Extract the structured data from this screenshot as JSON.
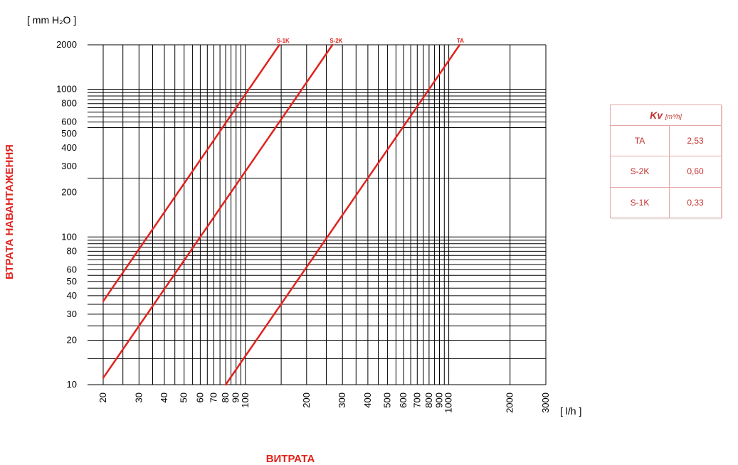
{
  "accent_color": "#e0231d",
  "chart_data": {
    "type": "line",
    "x_scale": "log",
    "y_scale": "log",
    "xlim": [
      20,
      3000
    ],
    "ylim": [
      10,
      2000
    ],
    "xlabel": "ВИТРАТА",
    "ylabel": "ВТРАТА НАВАНТАЖЕННЯ",
    "x_unit": "[ l/h ]",
    "y_unit": "[ mm H₂O ]",
    "grid": true,
    "x_ticks": [
      20,
      30,
      40,
      50,
      60,
      70,
      80,
      90,
      100,
      200,
      300,
      400,
      500,
      600,
      700,
      800,
      900,
      1000,
      2000,
      3000
    ],
    "y_ticks": [
      10,
      20,
      30,
      40,
      50,
      60,
      80,
      100,
      200,
      300,
      400,
      500,
      600,
      800,
      1000,
      2000
    ],
    "x_grid": [
      20,
      25,
      30,
      35,
      40,
      45,
      50,
      55,
      60,
      65,
      70,
      75,
      80,
      85,
      90,
      95,
      100,
      150,
      200,
      250,
      300,
      350,
      400,
      450,
      500,
      550,
      600,
      650,
      700,
      750,
      800,
      850,
      900,
      950,
      1000,
      2000,
      3000
    ],
    "y_grid": [
      10,
      15,
      20,
      25,
      30,
      35,
      40,
      45,
      50,
      55,
      60,
      65,
      70,
      75,
      80,
      85,
      90,
      95,
      100,
      250,
      550,
      600,
      650,
      700,
      750,
      800,
      850,
      900,
      950,
      1000,
      2000
    ],
    "series": [
      {
        "name": "S-1K",
        "kv": 0.33,
        "points": [
          [
            20,
            36.7
          ],
          [
            147,
            2000
          ]
        ],
        "color": "#e0231d"
      },
      {
        "name": "S-2K",
        "kv": 0.6,
        "points": [
          [
            20,
            11.1
          ],
          [
            268,
            2000
          ]
        ],
        "color": "#e0231d"
      },
      {
        "name": "TA",
        "kv": 2.53,
        "points": [
          [
            80,
            10
          ],
          [
            1131,
            2000
          ]
        ],
        "color": "#e0231d"
      }
    ]
  },
  "kv_table": {
    "header": "Kv",
    "header_unit": "[m³/h]",
    "rows": [
      {
        "label": "TA",
        "value": "2,53"
      },
      {
        "label": "S-2K",
        "value": "0,60"
      },
      {
        "label": "S-1K",
        "value": "0,33"
      }
    ]
  }
}
